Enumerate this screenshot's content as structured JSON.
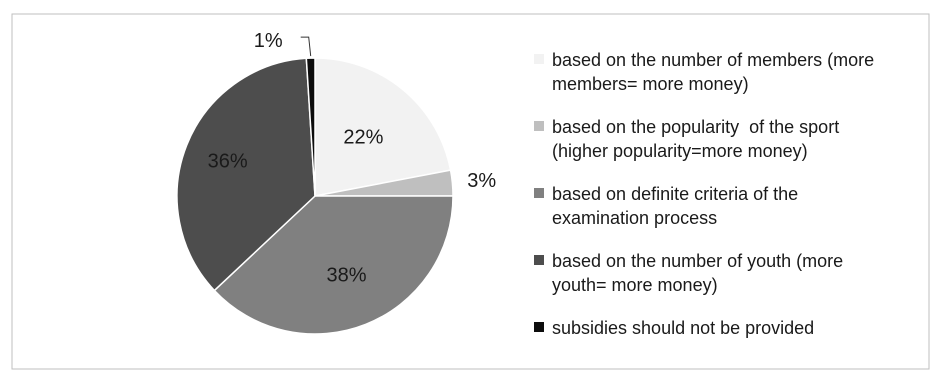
{
  "chart_data": {
    "type": "pie",
    "categories": [
      "based on the number of members (more members= more money)",
      "based on the popularity  of the sport (higher popularity=more money)",
      "based on definite criteria of the examination process",
      "based on the number of youth (more youth= more money)",
      "subsidies should not be provided"
    ],
    "legend_lines": [
      [
        "based on the number of members (more",
        "members= more money)"
      ],
      [
        "based on the popularity  of the sport",
        "(higher popularity=more money)"
      ],
      [
        "based on definite criteria of the",
        "examination process"
      ],
      [
        "based on the number of youth (more",
        "youth= more money)"
      ],
      [
        "subsidies should not be provided"
      ]
    ],
    "values": [
      22,
      3,
      38,
      36,
      1
    ],
    "data_labels": [
      "22%",
      "3%",
      "38%",
      "36%",
      "1%"
    ],
    "colors": [
      "#f2f2f2",
      "#bfbfbf",
      "#808080",
      "#4d4d4d",
      "#0d0d0d"
    ],
    "title": "",
    "legend_position": "right"
  }
}
